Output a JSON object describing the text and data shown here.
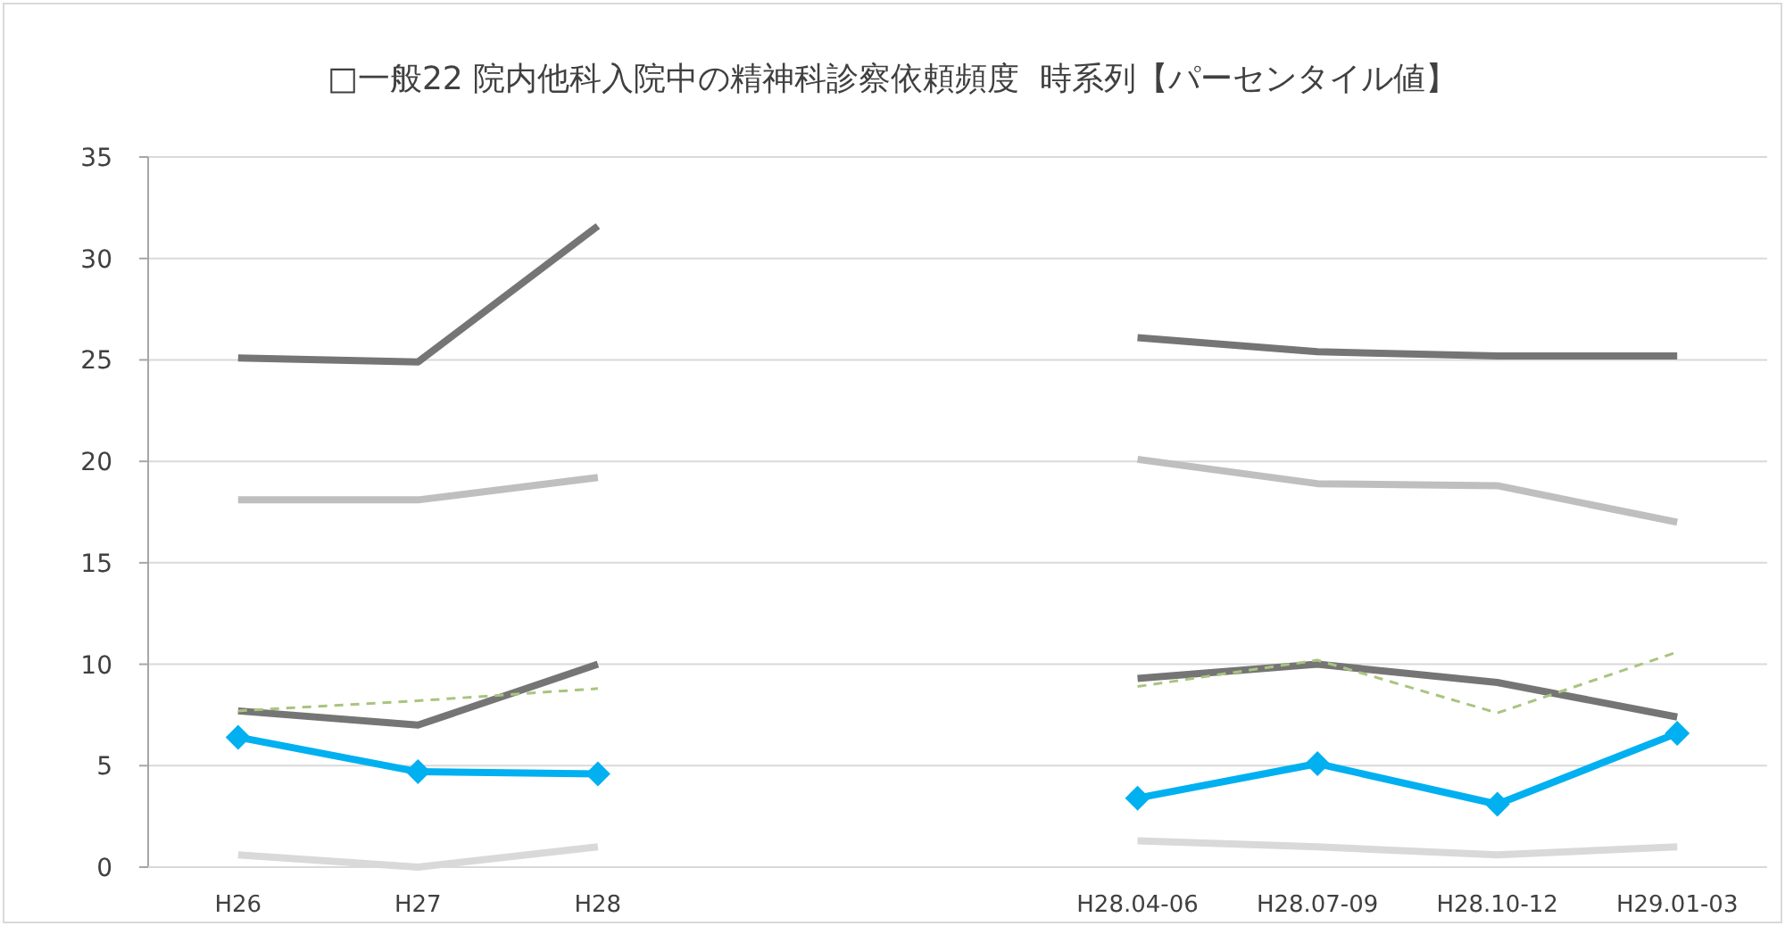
{
  "chart_data": {
    "type": "line",
    "title": "□一般22 院内他科入院中の精神科診察依頼頻度  時系列【パーセンタイル値】",
    "categories": [
      "H26",
      "H27",
      "H28",
      null,
      null,
      "H28.04-06",
      "H28.07-09",
      "H28.10-12",
      "H29.01-03"
    ],
    "ylim": [
      0,
      35
    ],
    "yticks": [
      0,
      5,
      10,
      15,
      20,
      25,
      30,
      35
    ],
    "grid": "y",
    "marker": "none",
    "line_style": "solid",
    "series": [
      {
        "color": "#757575",
        "values": [
          25.1,
          24.9,
          31.6,
          null,
          null,
          26.1,
          25.4,
          25.2,
          25.2
        ]
      },
      {
        "color": "#bfbfbf",
        "values": [
          18.1,
          18.1,
          19.2,
          null,
          null,
          20.1,
          18.9,
          18.8,
          17.0
        ]
      },
      {
        "color": "#757575",
        "values": [
          7.7,
          7.0,
          10.0,
          null,
          null,
          9.3,
          10.0,
          9.1,
          7.4
        ]
      },
      {
        "color": "#a9c47f",
        "line_style": "dashed",
        "values": [
          7.7,
          8.2,
          8.8,
          null,
          null,
          8.9,
          10.2,
          7.6,
          10.6
        ]
      },
      {
        "color": "#00b0f0",
        "marker": "diamond",
        "values": [
          6.4,
          4.7,
          4.6,
          null,
          null,
          3.4,
          5.1,
          3.1,
          6.6
        ]
      },
      {
        "color": "#d9d9d9",
        "values": [
          0.6,
          0.0,
          1.0,
          null,
          null,
          1.3,
          1.0,
          0.6,
          1.0
        ]
      }
    ]
  }
}
